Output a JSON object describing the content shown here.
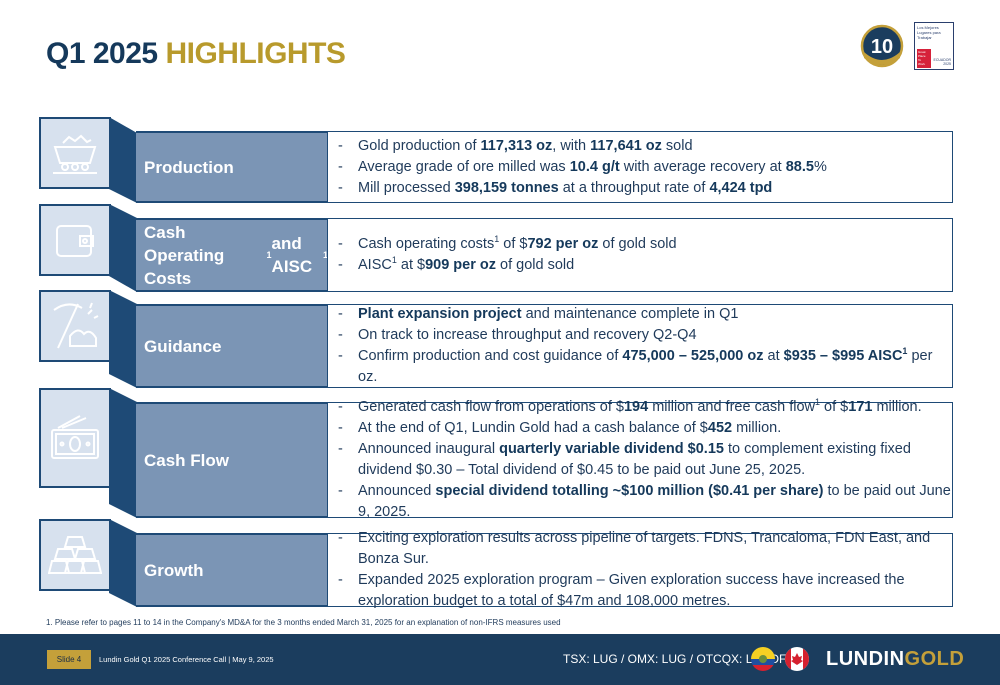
{
  "header": {
    "title_part1": "Q1 2025",
    "title_part2": "HIGHLIGHTS",
    "badge_ten_label": "10",
    "gptw_badge": {
      "lines": [
        "Los Mejores",
        "Lugares para",
        "Trabajar"
      ],
      "red_lines": [
        "Great",
        "Place",
        "To",
        "Work"
      ],
      "country": "ECUADOR",
      "year": "2025"
    }
  },
  "rows": [
    {
      "category": "Production",
      "icon": "mine-cart-icon",
      "bullets": [
        [
          {
            "t": "Gold production of "
          },
          {
            "t": "117,313 oz",
            "b": true
          },
          {
            "t": ", with "
          },
          {
            "t": "117,641 oz",
            "b": true
          },
          {
            "t": " sold"
          }
        ],
        [
          {
            "t": "Average grade of ore milled was "
          },
          {
            "t": "10.4 g/t",
            "b": true
          },
          {
            "t": " with average recovery at "
          },
          {
            "t": "88.5",
            "b": true
          },
          {
            "t": "%"
          }
        ],
        [
          {
            "t": "Mill processed "
          },
          {
            "t": "398,159 tonnes",
            "b": true
          },
          {
            "t": " at a throughput rate of "
          },
          {
            "t": "4,424 tpd",
            "b": true
          }
        ]
      ]
    },
    {
      "category": "Cash Operating Costs¹ and AISC¹",
      "category_parts": [
        {
          "t": "Cash Operating Costs"
        },
        {
          "t": "1",
          "sup": true
        },
        {
          "t": " and AISC"
        },
        {
          "t": "1",
          "sup": true
        }
      ],
      "icon": "wallet-icon",
      "bullets": [
        [
          {
            "t": "Cash operating costs"
          },
          {
            "t": "1",
            "sup": true
          },
          {
            "t": " of $"
          },
          {
            "t": "792 per oz",
            "b": true
          },
          {
            "t": " of gold sold"
          }
        ],
        [
          {
            "t": "AISC"
          },
          {
            "t": "1",
            "sup": true
          },
          {
            "t": " at $"
          },
          {
            "t": "909 per oz",
            "b": true
          },
          {
            "t": " of gold sold"
          }
        ]
      ]
    },
    {
      "category": "Guidance",
      "icon": "pickaxe-icon",
      "bullets": [
        [
          {
            "t": "Plant expansion project",
            "b": true
          },
          {
            "t": " and maintenance complete in Q1"
          }
        ],
        [
          {
            "t": "On track to increase throughput and recovery Q2-Q4"
          }
        ],
        [
          {
            "t": "Confirm production and cost guidance of "
          },
          {
            "t": "475,000 – 525,000 oz",
            "b": true
          },
          {
            "t": " at "
          },
          {
            "t": "$935 – $995 AISC",
            "b": true
          },
          {
            "t": "1",
            "sup": true,
            "b": true
          },
          {
            "t": " per oz."
          }
        ]
      ]
    },
    {
      "category": "Cash Flow",
      "icon": "cash-icon",
      "bullets": [
        [
          {
            "t": "Generated cash flow from operations of $"
          },
          {
            "t": "194",
            "b": true
          },
          {
            "t": " million and free cash flow"
          },
          {
            "t": "1",
            "sup": true
          },
          {
            "t": " of $"
          },
          {
            "t": "171",
            "b": true
          },
          {
            "t": " million."
          }
        ],
        [
          {
            "t": "At the end of Q1, Lundin Gold had a cash balance of $"
          },
          {
            "t": "452",
            "b": true
          },
          {
            "t": " million."
          }
        ],
        [
          {
            "t": "Announced inaugural "
          },
          {
            "t": "quarterly variable dividend $0.15",
            "b": true
          },
          {
            "t": " to complement existing fixed dividend $0.30 – Total dividend of $0.45 to be paid out June 25, 2025."
          }
        ],
        [
          {
            "t": "Announced "
          },
          {
            "t": "special dividend totalling ~$100 million ($0.41 per share)",
            "b": true
          },
          {
            "t": " to be paid out June 9, 2025."
          }
        ]
      ]
    },
    {
      "category": "Growth",
      "icon": "gold-bars-icon",
      "bullets": [
        [
          {
            "t": "Exciting exploration results across pipeline of targets. FDNS, Trancaloma, FDN East, and Bonza Sur."
          }
        ],
        [
          {
            "t": "Expanded 2025 exploration program – Given exploration success have increased the exploration budget to a total of $47m and 108,000 metres."
          }
        ]
      ]
    }
  ],
  "footnote": "1.    Please refer to pages 11 to 14 in the Company's MD&A for the 3 months ended March 31, 2025 for an explanation of non-IFRS measures used",
  "footer": {
    "slide_label": "Slide 4",
    "conference": "Lundin Gold Q1 2025 Conference Call | May 9, 2025",
    "ticker": "TSX: LUG / OMX: LUG / OTCQX: LUGDF",
    "logo_part1": "LUNDIN",
    "logo_part2": "GOLD"
  },
  "colors": {
    "navy": "#15395b",
    "gold": "#b89a2c",
    "category_fill": "#7b95b5",
    "icon_fill": "#d7e1ee",
    "footer_bg": "#1b3d5e"
  }
}
